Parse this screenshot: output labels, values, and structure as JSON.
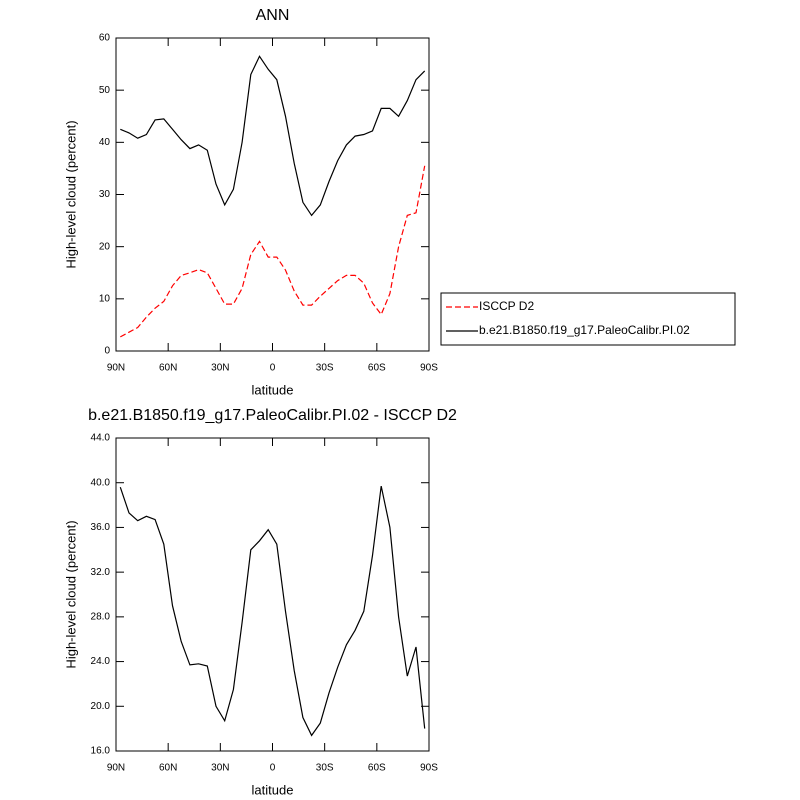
{
  "chart_data": [
    {
      "type": "line",
      "title": "ANN",
      "xlabel": "latitude",
      "ylabel": "High-level cloud (percent)",
      "x": [
        87.5,
        82.5,
        77.5,
        72.5,
        67.5,
        62.5,
        57.5,
        52.5,
        47.5,
        42.5,
        37.5,
        32.5,
        27.5,
        22.5,
        17.5,
        12.5,
        7.5,
        2.5,
        -2.5,
        -7.5,
        -12.5,
        -17.5,
        -22.5,
        -27.5,
        -32.5,
        -37.5,
        -42.5,
        -47.5,
        -52.5,
        -57.5,
        -62.5,
        -67.5,
        -72.5,
        -77.5,
        -82.5,
        -87.5
      ],
      "series": [
        {
          "name": "ISCCP D2",
          "color": "#ff0000",
          "line_style": "dashed",
          "values": [
            2.7,
            3.6,
            4.5,
            6.5,
            8.2,
            9.5,
            12.5,
            14.5,
            15,
            15.6,
            15,
            12,
            9,
            9,
            12,
            18.5,
            21,
            18,
            18,
            15.5,
            11.5,
            8.8,
            8.8,
            10.5,
            12,
            13.5,
            14.5,
            14.5,
            13,
            9.2,
            7,
            11,
            20,
            26,
            26.5,
            35.5
          ]
        },
        {
          "name": "b.e21.B1850.f19_g17.PaleoCalibr.PI.02",
          "color": "#000000",
          "line_style": "solid",
          "values": [
            42.5,
            41.8,
            40.8,
            41.5,
            44.3,
            44.5,
            42.5,
            40.5,
            38.8,
            39.5,
            38.5,
            32,
            28,
            31,
            40,
            53,
            56.5,
            54,
            52,
            45,
            36,
            28.5,
            26,
            28,
            32.5,
            36.5,
            39.5,
            41.2,
            41.5,
            42.2,
            46.5,
            46.5,
            45,
            48,
            52,
            53.7
          ]
        }
      ],
      "xlim": [
        90,
        -90
      ],
      "xticks": [
        {
          "value": 90,
          "label": "90N"
        },
        {
          "value": 60,
          "label": "60N"
        },
        {
          "value": 30,
          "label": "30N"
        },
        0,
        {
          "value": -30,
          "label": "30S"
        },
        {
          "value": -60,
          "label": "60S"
        },
        {
          "value": -90,
          "label": "90S"
        }
      ],
      "ylim": [
        0,
        60
      ],
      "yticks": [
        0,
        10,
        20,
        30,
        40,
        50,
        60
      ]
    },
    {
      "type": "line",
      "title": "b.e21.B1850.f19_g17.PaleoCalibr.PI.02 - ISCCP D2",
      "xlabel": "latitude",
      "ylabel": "High-level cloud (percent)",
      "x": [
        87.5,
        82.5,
        77.5,
        72.5,
        67.5,
        62.5,
        57.5,
        52.5,
        47.5,
        42.5,
        37.5,
        32.5,
        27.5,
        22.5,
        17.5,
        12.5,
        7.5,
        2.5,
        -2.5,
        -7.5,
        -12.5,
        -17.5,
        -22.5,
        -27.5,
        -32.5,
        -37.5,
        -42.5,
        -47.5,
        -52.5,
        -57.5,
        -62.5,
        -67.5,
        -72.5,
        -77.5,
        -82.5,
        -87.5
      ],
      "color": "#000000",
      "values": [
        39.6,
        37.3,
        36.6,
        37,
        36.7,
        34.5,
        29,
        25.8,
        23.7,
        23.8,
        23.6,
        20,
        18.7,
        21.5,
        27.5,
        34,
        34.8,
        35.8,
        34.5,
        28.5,
        23.2,
        19,
        17.4,
        18.5,
        21.2,
        23.5,
        25.5,
        26.8,
        28.5,
        33.5,
        39.7,
        36,
        28,
        22.7,
        25.3,
        18
      ],
      "xlim": [
        90,
        -90
      ],
      "xticks": [
        {
          "value": 90,
          "label": "90N"
        },
        {
          "value": 60,
          "label": "60N"
        },
        {
          "value": 30,
          "label": "30N"
        },
        0,
        {
          "value": -30,
          "label": "30S"
        },
        {
          "value": -60,
          "label": "60S"
        },
        {
          "value": -90,
          "label": "90S"
        }
      ],
      "ylim": [
        16,
        44
      ],
      "yticks": [
        {
          "value": 16,
          "label": "16.0"
        },
        {
          "value": 20,
          "label": "20.0"
        },
        {
          "value": 24,
          "label": "24.0"
        },
        {
          "value": 28,
          "label": "28.0"
        },
        {
          "value": 32,
          "label": "32.0"
        },
        {
          "value": 36,
          "label": "36.0"
        },
        {
          "value": 40,
          "label": "40.0"
        },
        {
          "value": 44,
          "label": "44.0"
        }
      ]
    }
  ]
}
